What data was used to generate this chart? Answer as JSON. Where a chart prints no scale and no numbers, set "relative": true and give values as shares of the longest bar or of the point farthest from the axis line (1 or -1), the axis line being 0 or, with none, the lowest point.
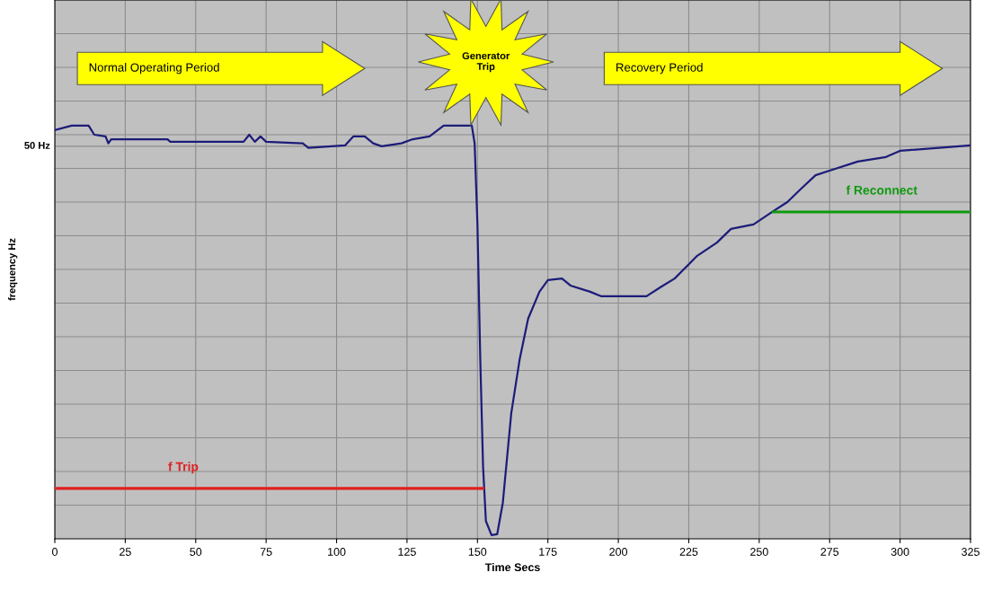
{
  "chart_data": {
    "type": "line",
    "relative": true,
    "xlabel": "Time Secs",
    "ylabel": "frequency Hz",
    "xlim": [
      0,
      325
    ],
    "xticks": [
      0,
      25,
      50,
      75,
      100,
      125,
      150,
      175,
      200,
      225,
      250,
      275,
      300,
      325
    ],
    "grid": true,
    "legend": false,
    "marker": "none",
    "line_style": "solid",
    "series": [
      {
        "color": "#1c1c7a",
        "x": [
          0,
          6,
          12,
          14,
          18,
          19,
          20,
          40,
          41,
          67,
          69,
          71,
          73,
          75,
          88,
          90,
          103,
          106,
          110,
          113,
          116,
          123,
          127,
          133,
          138,
          148,
          149,
          150,
          151,
          152,
          153,
          155,
          157,
          159,
          162,
          165,
          168,
          172,
          175,
          180,
          183,
          190,
          194,
          210,
          215,
          220,
          228,
          235,
          240,
          248,
          255,
          260,
          265,
          270,
          275,
          285,
          295,
          300,
          325
        ],
        "values": [
          0.989,
          1.0,
          1.0,
          0.978,
          0.974,
          0.957,
          0.967,
          0.967,
          0.961,
          0.961,
          0.978,
          0.961,
          0.974,
          0.961,
          0.957,
          0.946,
          0.952,
          0.974,
          0.974,
          0.957,
          0.95,
          0.957,
          0.967,
          0.974,
          1.0,
          1.0,
          0.957,
          0.761,
          0.435,
          0.174,
          0.043,
          0.009,
          0.011,
          0.087,
          0.304,
          0.435,
          0.533,
          0.598,
          0.626,
          0.63,
          0.613,
          0.598,
          0.587,
          0.587,
          0.609,
          0.63,
          0.685,
          0.717,
          0.75,
          0.761,
          0.793,
          0.815,
          0.848,
          0.88,
          0.891,
          0.913,
          0.924,
          0.939,
          0.952
        ]
      },
      {
        "name": "f Trip",
        "color": "#e02020",
        "x": [
          0,
          152
        ],
        "values": [
          0.122,
          0.122
        ]
      },
      {
        "name": "f Reconnect",
        "color": "#0f9a0f",
        "x": [
          255,
          325
        ],
        "values": [
          0.791,
          0.791
        ]
      }
    ],
    "ref_lines": [
      {
        "axis": "y",
        "value": 0.95,
        "label": "50 Hz",
        "color": "#8c8c8c"
      }
    ],
    "annotations": [
      "Normal Operating Period",
      "Generator Trip",
      "Recovery Period"
    ]
  }
}
